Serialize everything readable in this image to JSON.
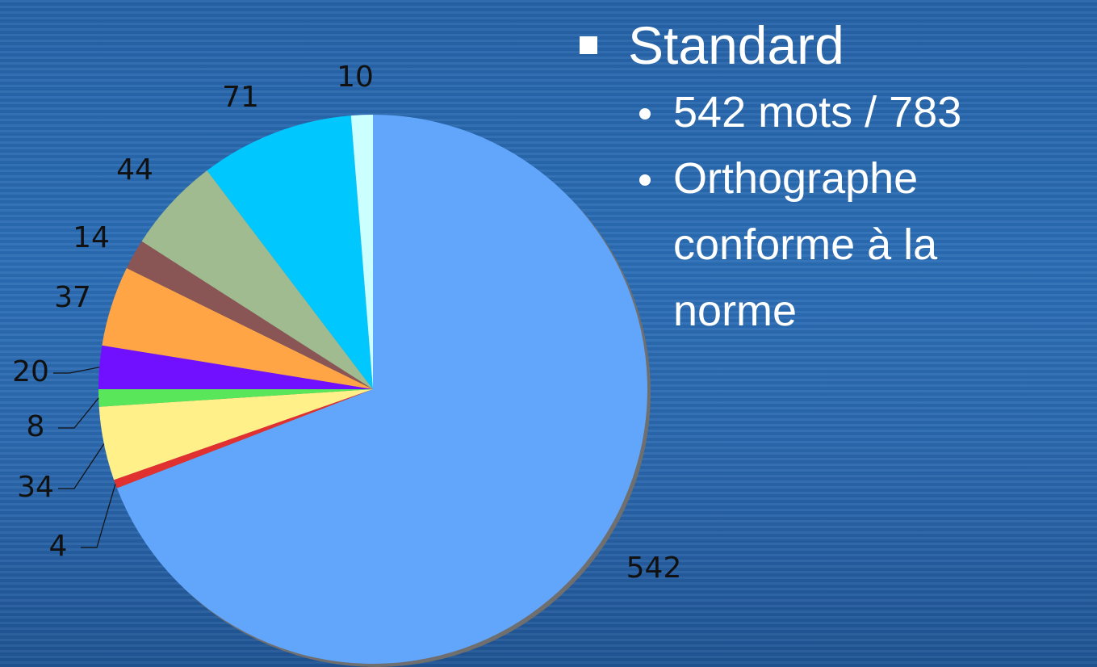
{
  "chart_data": {
    "type": "pie",
    "values": [
      542,
      4,
      34,
      8,
      20,
      37,
      14,
      44,
      71,
      10
    ],
    "colors": [
      "#62a6fb",
      "#e03030",
      "#fff08a",
      "#5ae65a",
      "#7010ff",
      "#ffa545",
      "#8a5555",
      "#a0bb90",
      "#00c8ff",
      "#ccffff"
    ]
  },
  "text": {
    "heading": "Standard",
    "bullets": [
      "542 mots / 783",
      "Orthographe conforme à la norme"
    ]
  }
}
